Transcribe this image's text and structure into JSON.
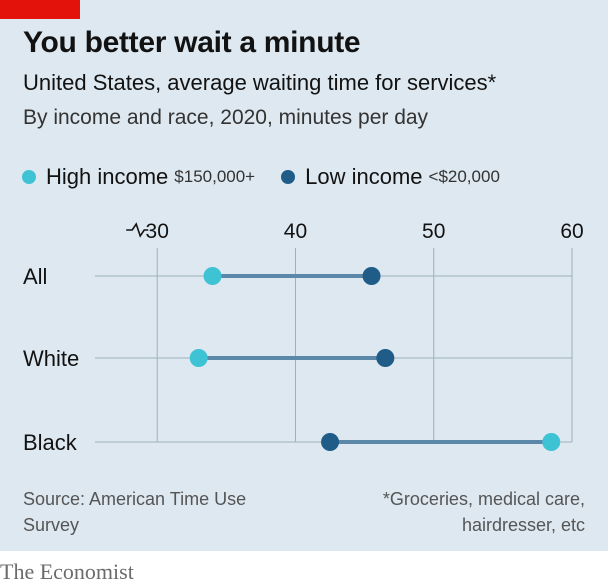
{
  "header": {
    "title": "You better wait a minute",
    "subtitle": "United States, average waiting time for services*",
    "subsubtitle": "By income and race, 2020, minutes per day"
  },
  "legend": {
    "items": [
      {
        "label": "High income",
        "note": "$150,000+",
        "color": "#3ec3d5"
      },
      {
        "label": "Low income",
        "note": "<$20,000",
        "color": "#1f5c87"
      }
    ]
  },
  "chart_data": {
    "type": "dumbbell",
    "categories": [
      "All",
      "White",
      "Black"
    ],
    "series": [
      {
        "name": "High income",
        "values": [
          34,
          33,
          58.5
        ],
        "color": "#3ec3d5"
      },
      {
        "name": "Low income",
        "values": [
          45.5,
          46.5,
          42.5
        ],
        "color": "#1f5c87"
      }
    ],
    "xticks": [
      30,
      40,
      50,
      60
    ],
    "xlim": [
      25.5,
      60
    ],
    "axis_break": true,
    "connector_color": "#5b88a8",
    "grid": true
  },
  "source": "Source: American Time Use Survey",
  "footnote": "*Groceries, medical care, hairdresser, etc",
  "publisher": "The Economist"
}
